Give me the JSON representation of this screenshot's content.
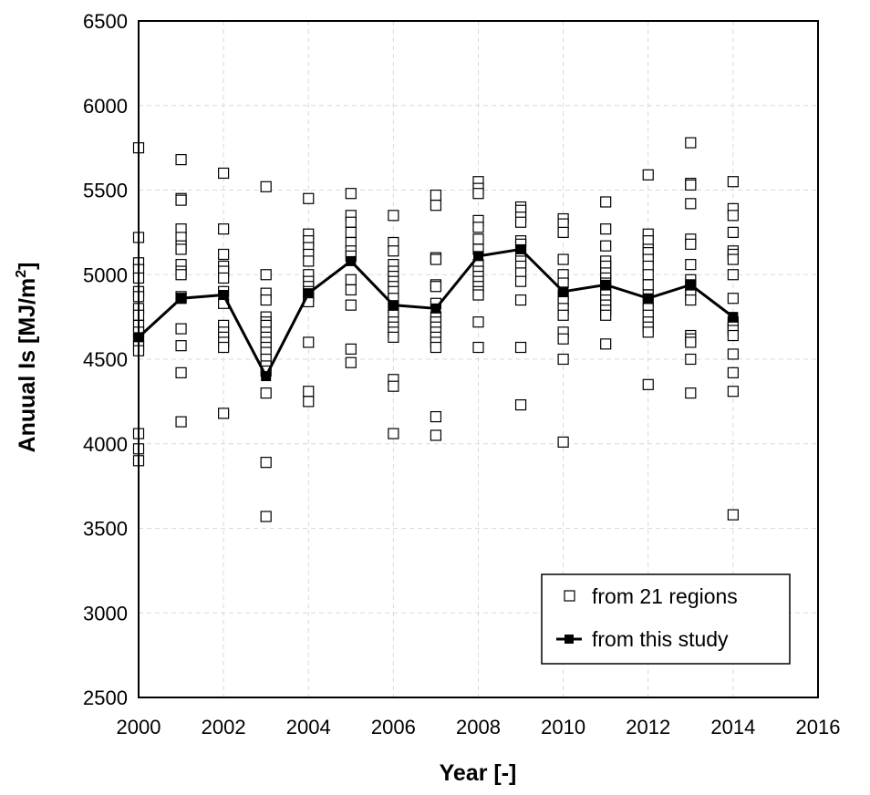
{
  "chart_data": {
    "type": "scatter",
    "xlabel": "Year  [-]",
    "ylabel_main": "Anuual Is  [MJ/m",
    "ylabel_sup": "2",
    "ylabel_end": "]",
    "xlim": [
      2000,
      2016
    ],
    "ylim": [
      2500,
      6500
    ],
    "x_ticks": [
      2000,
      2002,
      2004,
      2006,
      2008,
      2010,
      2012,
      2014,
      2016
    ],
    "y_ticks": [
      2500,
      3000,
      3500,
      4000,
      4500,
      5000,
      5500,
      6000,
      6500
    ],
    "x_tick_labels": [
      "2000",
      "2002",
      "2004",
      "2006",
      "2008",
      "2010",
      "2012",
      "2014",
      "2016"
    ],
    "y_tick_labels": [
      "2500",
      "3000",
      "3500",
      "4000",
      "4500",
      "5000",
      "5500",
      "6000",
      "6500"
    ],
    "grid": true,
    "legend_position": "bottom-right",
    "series": [
      {
        "name": "from 21 regions",
        "marker": "open-square",
        "points": [
          [
            2000,
            5750
          ],
          [
            2000,
            5220
          ],
          [
            2000,
            5070
          ],
          [
            2000,
            5030
          ],
          [
            2000,
            4980
          ],
          [
            2000,
            4900
          ],
          [
            2000,
            4870
          ],
          [
            2000,
            4800
          ],
          [
            2000,
            4760
          ],
          [
            2000,
            4700
          ],
          [
            2000,
            4660
          ],
          [
            2000,
            4620
          ],
          [
            2000,
            4580
          ],
          [
            2000,
            4550
          ],
          [
            2000,
            4060
          ],
          [
            2000,
            3970
          ],
          [
            2000,
            3900
          ],
          [
            2001,
            5680
          ],
          [
            2001,
            5450
          ],
          [
            2001,
            5440
          ],
          [
            2001,
            5270
          ],
          [
            2001,
            5220
          ],
          [
            2001,
            5170
          ],
          [
            2001,
            5150
          ],
          [
            2001,
            5060
          ],
          [
            2001,
            5020
          ],
          [
            2001,
            5000
          ],
          [
            2001,
            4870
          ],
          [
            2001,
            4860
          ],
          [
            2001,
            4680
          ],
          [
            2001,
            4580
          ],
          [
            2001,
            4420
          ],
          [
            2001,
            4130
          ],
          [
            2002,
            5600
          ],
          [
            2002,
            5270
          ],
          [
            2002,
            5120
          ],
          [
            2002,
            5050
          ],
          [
            2002,
            5020
          ],
          [
            2002,
            4980
          ],
          [
            2002,
            4900
          ],
          [
            2002,
            4830
          ],
          [
            2002,
            4700
          ],
          [
            2002,
            4660
          ],
          [
            2002,
            4630
          ],
          [
            2002,
            4600
          ],
          [
            2002,
            4570
          ],
          [
            2002,
            4180
          ],
          [
            2003,
            5520
          ],
          [
            2003,
            5000
          ],
          [
            2003,
            4890
          ],
          [
            2003,
            4850
          ],
          [
            2003,
            4750
          ],
          [
            2003,
            4720
          ],
          [
            2003,
            4700
          ],
          [
            2003,
            4660
          ],
          [
            2003,
            4630
          ],
          [
            2003,
            4600
          ],
          [
            2003,
            4570
          ],
          [
            2003,
            4540
          ],
          [
            2003,
            4500
          ],
          [
            2003,
            4460
          ],
          [
            2003,
            4430
          ],
          [
            2003,
            4300
          ],
          [
            2003,
            3890
          ],
          [
            2003,
            3570
          ],
          [
            2004,
            5450
          ],
          [
            2004,
            5240
          ],
          [
            2004,
            5200
          ],
          [
            2004,
            5160
          ],
          [
            2004,
            5120
          ],
          [
            2004,
            5080
          ],
          [
            2004,
            5000
          ],
          [
            2004,
            4960
          ],
          [
            2004,
            4930
          ],
          [
            2004,
            4900
          ],
          [
            2004,
            4870
          ],
          [
            2004,
            4840
          ],
          [
            2004,
            4600
          ],
          [
            2004,
            4310
          ],
          [
            2004,
            4250
          ],
          [
            2005,
            5480
          ],
          [
            2005,
            5350
          ],
          [
            2005,
            5310
          ],
          [
            2005,
            5250
          ],
          [
            2005,
            5190
          ],
          [
            2005,
            5140
          ],
          [
            2005,
            5110
          ],
          [
            2005,
            4970
          ],
          [
            2005,
            4910
          ],
          [
            2005,
            4820
          ],
          [
            2005,
            4560
          ],
          [
            2005,
            4480
          ],
          [
            2006,
            5350
          ],
          [
            2006,
            5190
          ],
          [
            2006,
            5140
          ],
          [
            2006,
            5060
          ],
          [
            2006,
            5020
          ],
          [
            2006,
            4990
          ],
          [
            2006,
            4960
          ],
          [
            2006,
            4930
          ],
          [
            2006,
            4900
          ],
          [
            2006,
            4860
          ],
          [
            2006,
            4800
          ],
          [
            2006,
            4760
          ],
          [
            2006,
            4720
          ],
          [
            2006,
            4690
          ],
          [
            2006,
            4660
          ],
          [
            2006,
            4630
          ],
          [
            2006,
            4380
          ],
          [
            2006,
            4340
          ],
          [
            2006,
            4060
          ],
          [
            2007,
            5470
          ],
          [
            2007,
            5410
          ],
          [
            2007,
            5100
          ],
          [
            2007,
            5090
          ],
          [
            2007,
            4940
          ],
          [
            2007,
            4930
          ],
          [
            2007,
            4830
          ],
          [
            2007,
            4750
          ],
          [
            2007,
            4720
          ],
          [
            2007,
            4690
          ],
          [
            2007,
            4660
          ],
          [
            2007,
            4630
          ],
          [
            2007,
            4600
          ],
          [
            2007,
            4570
          ],
          [
            2007,
            4160
          ],
          [
            2007,
            4050
          ],
          [
            2008,
            5550
          ],
          [
            2008,
            5510
          ],
          [
            2008,
            5480
          ],
          [
            2008,
            5320
          ],
          [
            2008,
            5280
          ],
          [
            2008,
            5210
          ],
          [
            2008,
            5150
          ],
          [
            2008,
            5060
          ],
          [
            2008,
            5020
          ],
          [
            2008,
            4990
          ],
          [
            2008,
            4960
          ],
          [
            2008,
            4930
          ],
          [
            2008,
            4900
          ],
          [
            2008,
            4880
          ],
          [
            2008,
            4720
          ],
          [
            2008,
            4570
          ],
          [
            2009,
            5400
          ],
          [
            2009,
            5380
          ],
          [
            2009,
            5340
          ],
          [
            2009,
            5310
          ],
          [
            2009,
            5200
          ],
          [
            2009,
            5180
          ],
          [
            2009,
            5120
          ],
          [
            2009,
            5080
          ],
          [
            2009,
            5050
          ],
          [
            2009,
            5010
          ],
          [
            2009,
            4960
          ],
          [
            2009,
            4850
          ],
          [
            2009,
            4570
          ],
          [
            2009,
            4230
          ],
          [
            2010,
            5330
          ],
          [
            2010,
            5300
          ],
          [
            2010,
            5250
          ],
          [
            2010,
            5090
          ],
          [
            2010,
            5000
          ],
          [
            2010,
            4950
          ],
          [
            2010,
            4880
          ],
          [
            2010,
            4840
          ],
          [
            2010,
            4800
          ],
          [
            2010,
            4760
          ],
          [
            2010,
            4660
          ],
          [
            2010,
            4620
          ],
          [
            2010,
            4500
          ],
          [
            2010,
            4010
          ],
          [
            2011,
            5430
          ],
          [
            2011,
            5270
          ],
          [
            2011,
            5170
          ],
          [
            2011,
            5080
          ],
          [
            2011,
            5050
          ],
          [
            2011,
            5010
          ],
          [
            2011,
            4980
          ],
          [
            2011,
            4950
          ],
          [
            2011,
            4920
          ],
          [
            2011,
            4880
          ],
          [
            2011,
            4850
          ],
          [
            2011,
            4820
          ],
          [
            2011,
            4790
          ],
          [
            2011,
            4760
          ],
          [
            2011,
            4590
          ],
          [
            2012,
            5590
          ],
          [
            2012,
            5240
          ],
          [
            2012,
            5200
          ],
          [
            2012,
            5150
          ],
          [
            2012,
            5130
          ],
          [
            2012,
            5090
          ],
          [
            2012,
            5050
          ],
          [
            2012,
            5000
          ],
          [
            2012,
            4940
          ],
          [
            2012,
            4880
          ],
          [
            2012,
            4840
          ],
          [
            2012,
            4800
          ],
          [
            2012,
            4760
          ],
          [
            2012,
            4720
          ],
          [
            2012,
            4690
          ],
          [
            2012,
            4660
          ],
          [
            2012,
            4350
          ],
          [
            2013,
            5780
          ],
          [
            2013,
            5540
          ],
          [
            2013,
            5530
          ],
          [
            2013,
            5420
          ],
          [
            2013,
            5210
          ],
          [
            2013,
            5180
          ],
          [
            2013,
            5060
          ],
          [
            2013,
            4970
          ],
          [
            2013,
            4940
          ],
          [
            2013,
            4910
          ],
          [
            2013,
            4880
          ],
          [
            2013,
            4850
          ],
          [
            2013,
            4640
          ],
          [
            2013,
            4620
          ],
          [
            2013,
            4600
          ],
          [
            2013,
            4500
          ],
          [
            2013,
            4300
          ],
          [
            2014,
            5550
          ],
          [
            2014,
            5390
          ],
          [
            2014,
            5350
          ],
          [
            2014,
            5250
          ],
          [
            2014,
            5140
          ],
          [
            2014,
            5120
          ],
          [
            2014,
            5090
          ],
          [
            2014,
            5000
          ],
          [
            2014,
            4860
          ],
          [
            2014,
            4720
          ],
          [
            2014,
            4690
          ],
          [
            2014,
            4670
          ],
          [
            2014,
            4640
          ],
          [
            2014,
            4530
          ],
          [
            2014,
            4420
          ],
          [
            2014,
            4310
          ],
          [
            2014,
            3580
          ]
        ]
      },
      {
        "name": "from this study",
        "marker": "filled-square-line",
        "x": [
          2000,
          2001,
          2002,
          2003,
          2004,
          2005,
          2006,
          2007,
          2008,
          2009,
          2010,
          2011,
          2012,
          2013,
          2014
        ],
        "y": [
          4630,
          4860,
          4880,
          4400,
          4890,
          5080,
          4820,
          4800,
          5110,
          5150,
          4900,
          4940,
          4860,
          4940,
          4750
        ]
      }
    ]
  },
  "colors": {
    "line": "#000000",
    "grid": "#d9d9d9",
    "marker_fill": "#ffffff"
  }
}
